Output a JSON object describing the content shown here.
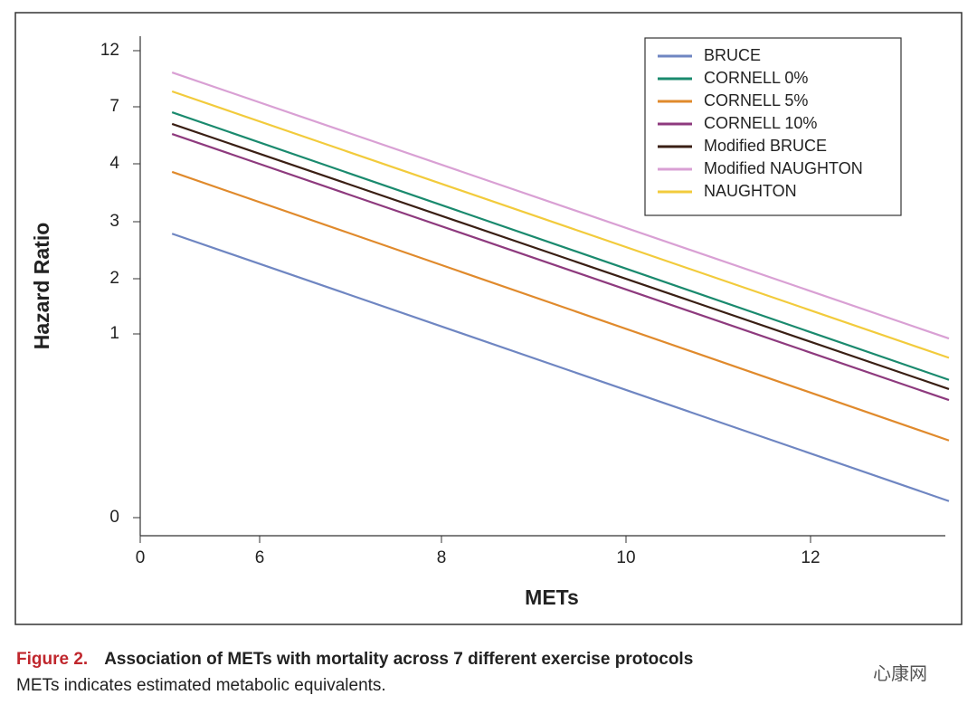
{
  "chart_data": {
    "type": "line",
    "xlabel": "METs",
    "ylabel": "Hazard Ratio",
    "x": [
      1.6,
      13.5
    ],
    "xlim": [
      0,
      13.5
    ],
    "xticks": [
      0,
      6,
      8,
      10,
      12
    ],
    "ylim": [
      0,
      12
    ],
    "yticks": [
      0,
      1,
      2,
      3,
      4,
      7,
      12
    ],
    "legend": "upper right",
    "series": [
      {
        "name": "BRUCE",
        "color": "#6f86c2",
        "values": [
          2.79,
          0.09
        ]
      },
      {
        "name": "CORNELL 0%",
        "color": "#1a8a6e",
        "values": [
          6.71,
          0.75
        ]
      },
      {
        "name": "CORNELL 5%",
        "color": "#e08a2c",
        "values": [
          3.86,
          0.42
        ]
      },
      {
        "name": "CORNELL 10%",
        "color": "#8e3a7e",
        "values": [
          5.57,
          0.64
        ]
      },
      {
        "name": "Modified BRUCE",
        "color": "#3a1f14",
        "values": [
          6.1,
          0.7
        ]
      },
      {
        "name": "Modified NAUGHTON",
        "color": "#d9a0d4",
        "values": [
          10.06,
          0.975
        ]
      },
      {
        "name": "NAUGHTON",
        "color": "#f2cb3c",
        "values": [
          8.37,
          0.87
        ]
      }
    ]
  },
  "caption": {
    "figure": "Figure 2.",
    "title": "Association of METs with mortality across 7 different exercise protocols",
    "note": "METs indicates estimated metabolic equivalents."
  },
  "watermark": "心康网"
}
